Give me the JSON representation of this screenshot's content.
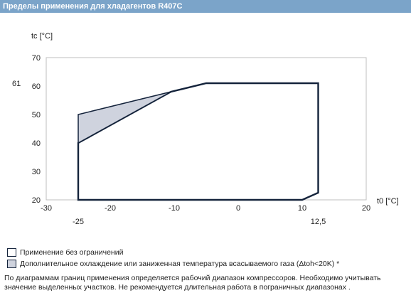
{
  "header": {
    "title": "Пределы применения для хладагентов R407C"
  },
  "chart_data": {
    "type": "area",
    "ylabel": "tc [°C]",
    "xlabel": "t0 [°C]",
    "xlim": [
      -30,
      20
    ],
    "ylim": [
      20,
      70
    ],
    "x_ticks": [
      -30,
      -20,
      -10,
      0,
      10,
      20
    ],
    "y_ticks": [
      20,
      30,
      40,
      50,
      60,
      70
    ],
    "x_markers": [
      "-25",
      "12,5"
    ],
    "y_markers": [
      "61"
    ],
    "grid": false,
    "series": [
      {
        "name": "Применение без ограничений",
        "fill": "#ffffff",
        "stroke": "#14233b",
        "x": [
          -25,
          -25,
          -10.5,
          -5,
          12.5,
          12.5,
          10,
          -25
        ],
        "y": [
          20,
          40,
          58,
          61,
          61,
          22.5,
          20,
          20
        ]
      },
      {
        "name": "Дополнительное охлаждение или заниженная температура всасываемого газа (Δtoh<20K) *",
        "fill": "#cfd3de",
        "stroke": "#14233b",
        "x": [
          -25,
          -10.5,
          -25
        ],
        "y": [
          50,
          58,
          40
        ]
      }
    ]
  },
  "legend": {
    "items": [
      {
        "label": "Применение без ограничений",
        "color": "#ffffff"
      },
      {
        "label": "Дополнительное охлаждение или заниженная температура всасываемого газа (Δtoh<20K) *",
        "color": "#cfd3de"
      }
    ]
  },
  "note": "По диаграммам границ применения определяется рабочий диапазон компрессоров. Необходимо учитывать значение выделенных участков. Не рекомендуется длительная работа в пограничных диапазонах ."
}
